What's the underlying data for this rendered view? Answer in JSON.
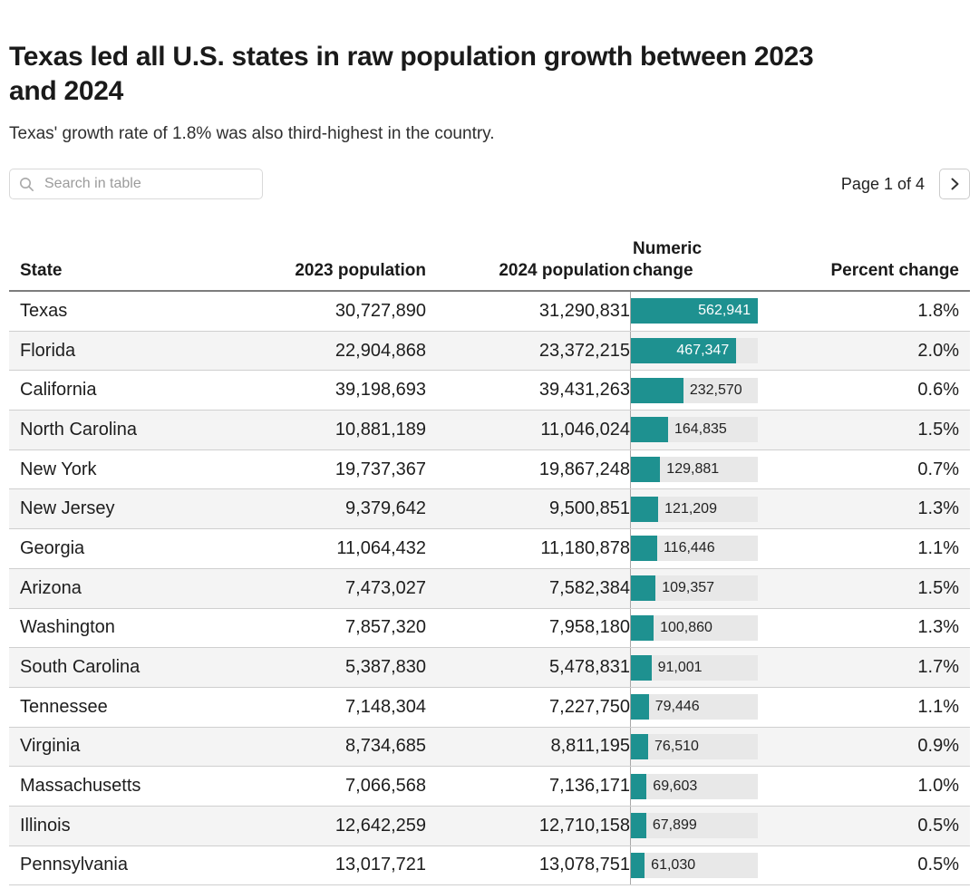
{
  "header": {
    "title": "Texas led all U.S. states in raw population growth between 2023 and 2024",
    "title_line1": "Texas led all U.S. states in raw population growth between 2023",
    "title_line2": "and 2024",
    "subtitle": "Texas' growth rate of 1.8% was also third-highest in the country."
  },
  "controls": {
    "search_placeholder": "Search in table",
    "search_icon": "magnifier",
    "pagination_label": "Page 1 of 4",
    "next_icon": "chevron-right"
  },
  "colors": {
    "bar_fill": "#1e9190",
    "bar_track": "#e8e8e8",
    "row_alt": "#f4f4f4",
    "title_text": "#1a1a1a"
  },
  "table": {
    "columns": [
      "State",
      "2023 population",
      "2024 population",
      "Numeric change",
      "Percent change"
    ],
    "bar_max": 562941,
    "rows": [
      {
        "state": "Texas",
        "pop_2023": "30,727,890",
        "pop_2024": "31,290,831",
        "numeric_change": "562,941",
        "change_value": 562941,
        "percent_change": "1.8%"
      },
      {
        "state": "Florida",
        "pop_2023": "22,904,868",
        "pop_2024": "23,372,215",
        "numeric_change": "467,347",
        "change_value": 467347,
        "percent_change": "2.0%"
      },
      {
        "state": "California",
        "pop_2023": "39,198,693",
        "pop_2024": "39,431,263",
        "numeric_change": "232,570",
        "change_value": 232570,
        "percent_change": "0.6%"
      },
      {
        "state": "North Carolina",
        "pop_2023": "10,881,189",
        "pop_2024": "11,046,024",
        "numeric_change": "164,835",
        "change_value": 164835,
        "percent_change": "1.5%"
      },
      {
        "state": "New York",
        "pop_2023": "19,737,367",
        "pop_2024": "19,867,248",
        "numeric_change": "129,881",
        "change_value": 129881,
        "percent_change": "0.7%"
      },
      {
        "state": "New Jersey",
        "pop_2023": "9,379,642",
        "pop_2024": "9,500,851",
        "numeric_change": "121,209",
        "change_value": 121209,
        "percent_change": "1.3%"
      },
      {
        "state": "Georgia",
        "pop_2023": "11,064,432",
        "pop_2024": "11,180,878",
        "numeric_change": "116,446",
        "change_value": 116446,
        "percent_change": "1.1%"
      },
      {
        "state": "Arizona",
        "pop_2023": "7,473,027",
        "pop_2024": "7,582,384",
        "numeric_change": "109,357",
        "change_value": 109357,
        "percent_change": "1.5%"
      },
      {
        "state": "Washington",
        "pop_2023": "7,857,320",
        "pop_2024": "7,958,180",
        "numeric_change": "100,860",
        "change_value": 100860,
        "percent_change": "1.3%"
      },
      {
        "state": "South Carolina",
        "pop_2023": "5,387,830",
        "pop_2024": "5,478,831",
        "numeric_change": "91,001",
        "change_value": 91001,
        "percent_change": "1.7%"
      },
      {
        "state": "Tennessee",
        "pop_2023": "7,148,304",
        "pop_2024": "7,227,750",
        "numeric_change": "79,446",
        "change_value": 79446,
        "percent_change": "1.1%"
      },
      {
        "state": "Virginia",
        "pop_2023": "8,734,685",
        "pop_2024": "8,811,195",
        "numeric_change": "76,510",
        "change_value": 76510,
        "percent_change": "0.9%"
      },
      {
        "state": "Massachusetts",
        "pop_2023": "7,066,568",
        "pop_2024": "7,136,171",
        "numeric_change": "69,603",
        "change_value": 69603,
        "percent_change": "1.0%"
      },
      {
        "state": "Illinois",
        "pop_2023": "12,642,259",
        "pop_2024": "12,710,158",
        "numeric_change": "67,899",
        "change_value": 67899,
        "percent_change": "0.5%"
      },
      {
        "state": "Pennsylvania",
        "pop_2023": "13,017,721",
        "pop_2024": "13,078,751",
        "numeric_change": "61,030",
        "change_value": 61030,
        "percent_change": "0.5%"
      }
    ]
  },
  "chart_data": {
    "type": "table",
    "title": "Texas led all U.S. states in raw population growth between 2023 and 2024",
    "subtitle": "Texas' growth rate of 1.8% was also third-highest in the country.",
    "columns": [
      "State",
      "2023 population",
      "2024 population",
      "Numeric change",
      "Percent change"
    ],
    "bar_column": "Numeric change",
    "bar_type": "bar",
    "bar_max": 562941,
    "rows": [
      [
        "Texas",
        30727890,
        31290831,
        562941,
        1.8
      ],
      [
        "Florida",
        22904868,
        23372215,
        467347,
        2.0
      ],
      [
        "California",
        39198693,
        39431263,
        232570,
        0.6
      ],
      [
        "North Carolina",
        10881189,
        11046024,
        164835,
        1.5
      ],
      [
        "New York",
        19737367,
        19867248,
        129881,
        0.7
      ],
      [
        "New Jersey",
        9379642,
        9500851,
        121209,
        1.3
      ],
      [
        "Georgia",
        11064432,
        11180878,
        116446,
        1.1
      ],
      [
        "Arizona",
        7473027,
        7582384,
        109357,
        1.5
      ],
      [
        "Washington",
        7857320,
        7958180,
        100860,
        1.3
      ],
      [
        "South Carolina",
        5387830,
        5478831,
        91001,
        1.7
      ],
      [
        "Tennessee",
        7148304,
        7227750,
        79446,
        1.1
      ],
      [
        "Virginia",
        8734685,
        8811195,
        76510,
        0.9
      ],
      [
        "Massachusetts",
        7066568,
        7136171,
        69603,
        1.0
      ],
      [
        "Illinois",
        12642259,
        12710158,
        67899,
        0.5
      ],
      [
        "Pennsylvania",
        13017721,
        13078751,
        61030,
        0.5
      ]
    ],
    "pagination": "Page 1 of 4"
  }
}
